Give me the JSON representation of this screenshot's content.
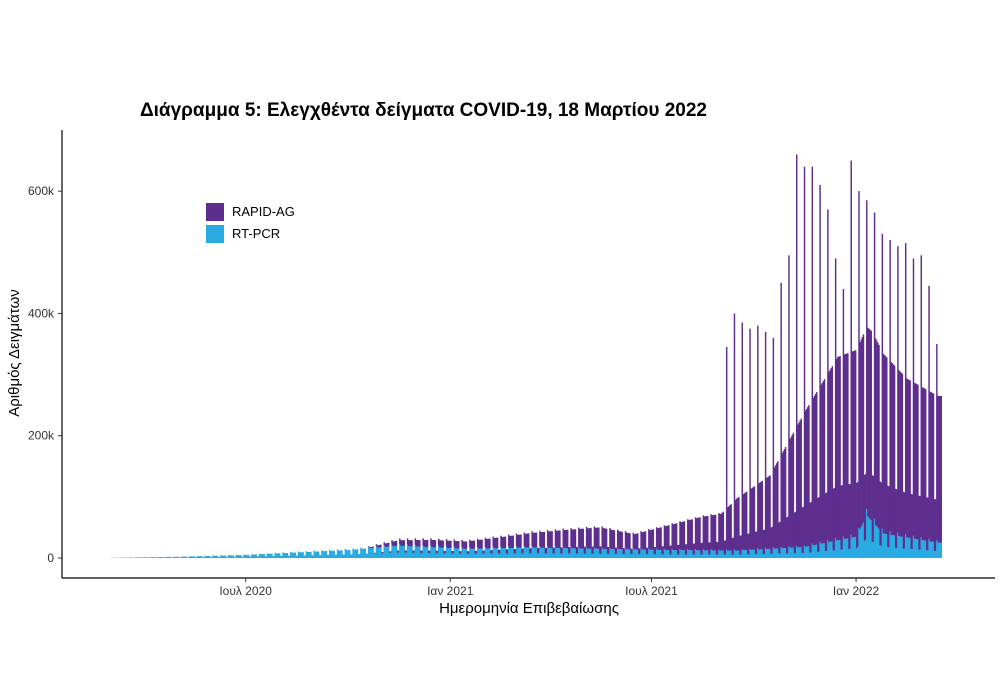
{
  "colors": {
    "rapid": "#5e2e8f",
    "rtpcr": "#29abe2",
    "axis": "#000000"
  },
  "chart_data": {
    "type": "bar",
    "stacked": true,
    "title": "Διάγραμμα 5: Ελεγχθέντα δείγματα COVID-19, 18 Μαρτίου 2022",
    "xlabel": "Ημερομηνία Επιβεβαίωσης",
    "ylabel": "Αριθμός Δειγμάτων",
    "ylim": [
      0,
      700000
    ],
    "yticks": [
      0,
      200000,
      400000,
      600000
    ],
    "ytick_labels": [
      "0",
      "200k",
      "400k",
      "600k"
    ],
    "xtick_labels": [
      "Ιουλ 2020",
      "Ιαν 2021",
      "Ιουλ 2021",
      "Ιαν 2022"
    ],
    "xtick_dates": [
      "2020-07-01",
      "2021-01-01",
      "2021-07-01",
      "2022-01-01"
    ],
    "xlim": [
      "2020-03-01",
      "2022-03-31"
    ],
    "legend_position": "top-left",
    "legend": [
      "RAPID-AG",
      "RT-PCR"
    ],
    "series": [
      {
        "name": "RAPID-AG",
        "color": "#5e2e8f",
        "weekly_baseline": [
          [
            "2020-10-15",
            0
          ],
          [
            "2020-11-15",
            9000
          ],
          [
            "2020-12-15",
            12000
          ],
          [
            "2021-01-15",
            12000
          ],
          [
            "2021-02-15",
            18000
          ],
          [
            "2021-03-15",
            24000
          ],
          [
            "2021-04-15",
            30000
          ],
          [
            "2021-05-15",
            35000
          ],
          [
            "2021-06-15",
            25000
          ],
          [
            "2021-07-15",
            40000
          ],
          [
            "2021-08-15",
            55000
          ],
          [
            "2021-09-01",
            60000
          ],
          [
            "2021-09-15",
            85000
          ],
          [
            "2021-10-15",
            120000
          ],
          [
            "2021-11-15",
            220000
          ],
          [
            "2021-12-15",
            300000
          ],
          [
            "2022-01-15",
            310000
          ],
          [
            "2022-02-15",
            260000
          ],
          [
            "2022-03-15",
            240000
          ]
        ],
        "weekly_peaks": [
          [
            "2021-09-06",
            345000
          ],
          [
            "2021-09-13",
            400000
          ],
          [
            "2021-09-20",
            385000
          ],
          [
            "2021-09-27",
            375000
          ],
          [
            "2021-10-04",
            380000
          ],
          [
            "2021-10-11",
            370000
          ],
          [
            "2021-10-18",
            360000
          ],
          [
            "2021-10-25",
            450000
          ],
          [
            "2021-11-01",
            495000
          ],
          [
            "2021-11-08",
            660000
          ],
          [
            "2021-11-15",
            640000
          ],
          [
            "2021-11-22",
            640000
          ],
          [
            "2021-11-29",
            610000
          ],
          [
            "2021-12-06",
            570000
          ],
          [
            "2021-12-13",
            490000
          ],
          [
            "2021-12-20",
            440000
          ],
          [
            "2021-12-27",
            650000
          ],
          [
            "2022-01-03",
            600000
          ],
          [
            "2022-01-10",
            585000
          ],
          [
            "2022-01-17",
            565000
          ],
          [
            "2022-01-24",
            530000
          ],
          [
            "2022-01-31",
            520000
          ],
          [
            "2022-02-07",
            510000
          ],
          [
            "2022-02-14",
            515000
          ],
          [
            "2022-02-21",
            490000
          ],
          [
            "2022-02-28",
            495000
          ],
          [
            "2022-03-07",
            445000
          ],
          [
            "2022-03-14",
            350000
          ]
        ]
      },
      {
        "name": "RT-PCR",
        "color": "#29abe2",
        "weekly_baseline": [
          [
            "2020-03-01",
            300
          ],
          [
            "2020-05-01",
            2000
          ],
          [
            "2020-07-01",
            5000
          ],
          [
            "2020-08-15",
            9000
          ],
          [
            "2020-10-01",
            13000
          ],
          [
            "2020-11-15",
            20000
          ],
          [
            "2021-01-15",
            15000
          ],
          [
            "2021-03-15",
            17000
          ],
          [
            "2021-05-15",
            15000
          ],
          [
            "2021-07-15",
            13000
          ],
          [
            "2021-09-15",
            12000
          ],
          [
            "2021-11-15",
            18000
          ],
          [
            "2022-01-01",
            35000
          ],
          [
            "2022-01-10",
            70000
          ],
          [
            "2022-01-25",
            40000
          ],
          [
            "2022-03-15",
            25000
          ]
        ]
      }
    ]
  }
}
